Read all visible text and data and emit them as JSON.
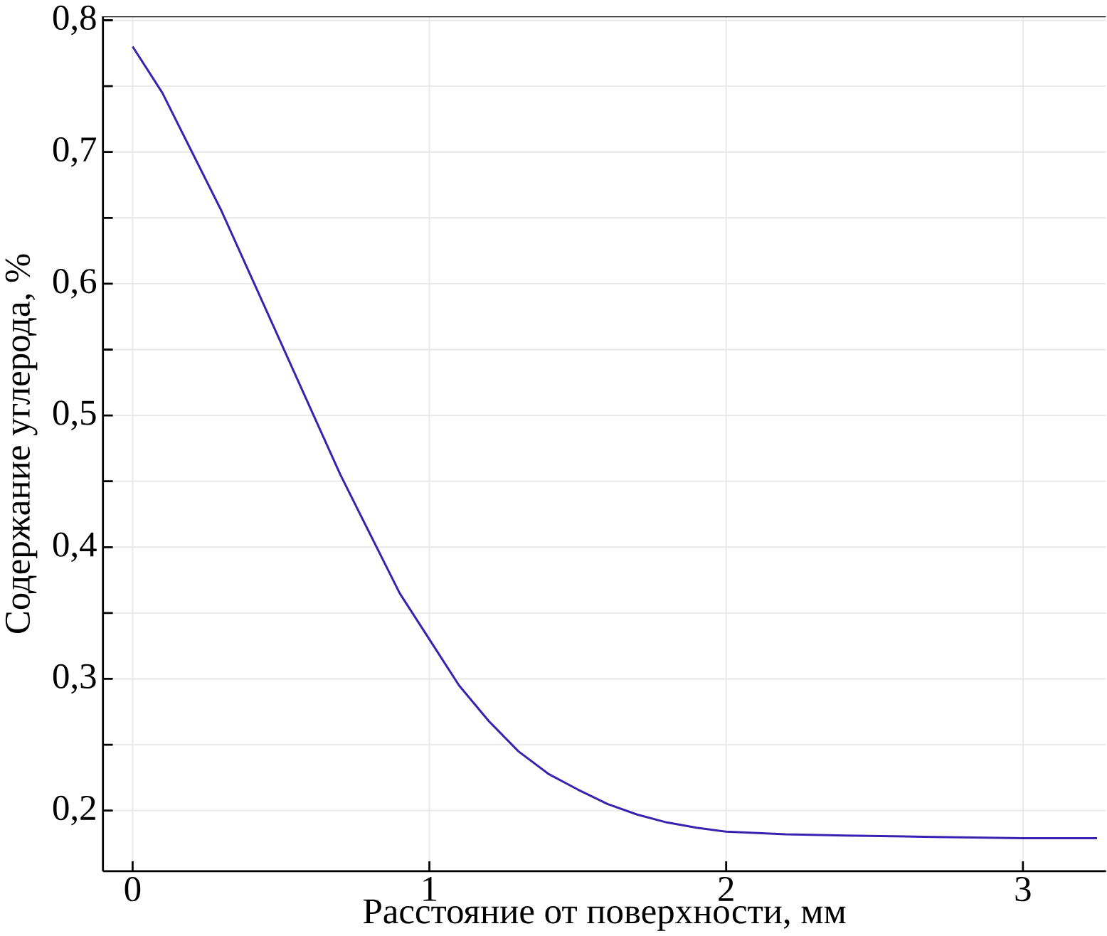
{
  "chart_data": {
    "type": "line",
    "xlabel": "Расстояние от поверхности, мм",
    "ylabel": "Содержание углерода, %",
    "x": [
      0,
      0.1,
      0.2,
      0.3,
      0.4,
      0.5,
      0.6,
      0.7,
      0.8,
      0.9,
      1.0,
      1.1,
      1.2,
      1.3,
      1.4,
      1.5,
      1.6,
      1.7,
      1.8,
      1.9,
      2.0,
      2.2,
      2.4,
      2.7,
      3.0,
      3.25
    ],
    "series": [
      {
        "color": "#3a22b0",
        "values": [
          0.78,
          0.745,
          0.7,
          0.655,
          0.605,
          0.555,
          0.505,
          0.455,
          0.41,
          0.365,
          0.33,
          0.295,
          0.268,
          0.245,
          0.228,
          0.216,
          0.205,
          0.197,
          0.191,
          0.187,
          0.184,
          0.182,
          0.181,
          0.18,
          0.179,
          0.179
        ]
      }
    ],
    "xlim": [
      -0.1,
      3.28
    ],
    "ylim": [
      0.154,
      0.803
    ],
    "xticks": [
      0,
      1,
      2,
      3
    ],
    "yticks": [
      {
        "value": 0.2,
        "label": "0,2"
      },
      {
        "value": 0.25,
        "label": null
      },
      {
        "value": 0.3,
        "label": "0,3"
      },
      {
        "value": 0.35,
        "label": null
      },
      {
        "value": 0.4,
        "label": "0,4"
      },
      {
        "value": 0.45,
        "label": null
      },
      {
        "value": 0.5,
        "label": "0,5"
      },
      {
        "value": 0.55,
        "label": null
      },
      {
        "value": 0.6,
        "label": "0,6"
      },
      {
        "value": 0.65,
        "label": null
      },
      {
        "value": 0.7,
        "label": "0,7"
      },
      {
        "value": 0.75,
        "label": null
      },
      {
        "value": 0.8,
        "label": "0,8"
      }
    ],
    "grid": true,
    "line_style": "solid",
    "marker": "none"
  }
}
